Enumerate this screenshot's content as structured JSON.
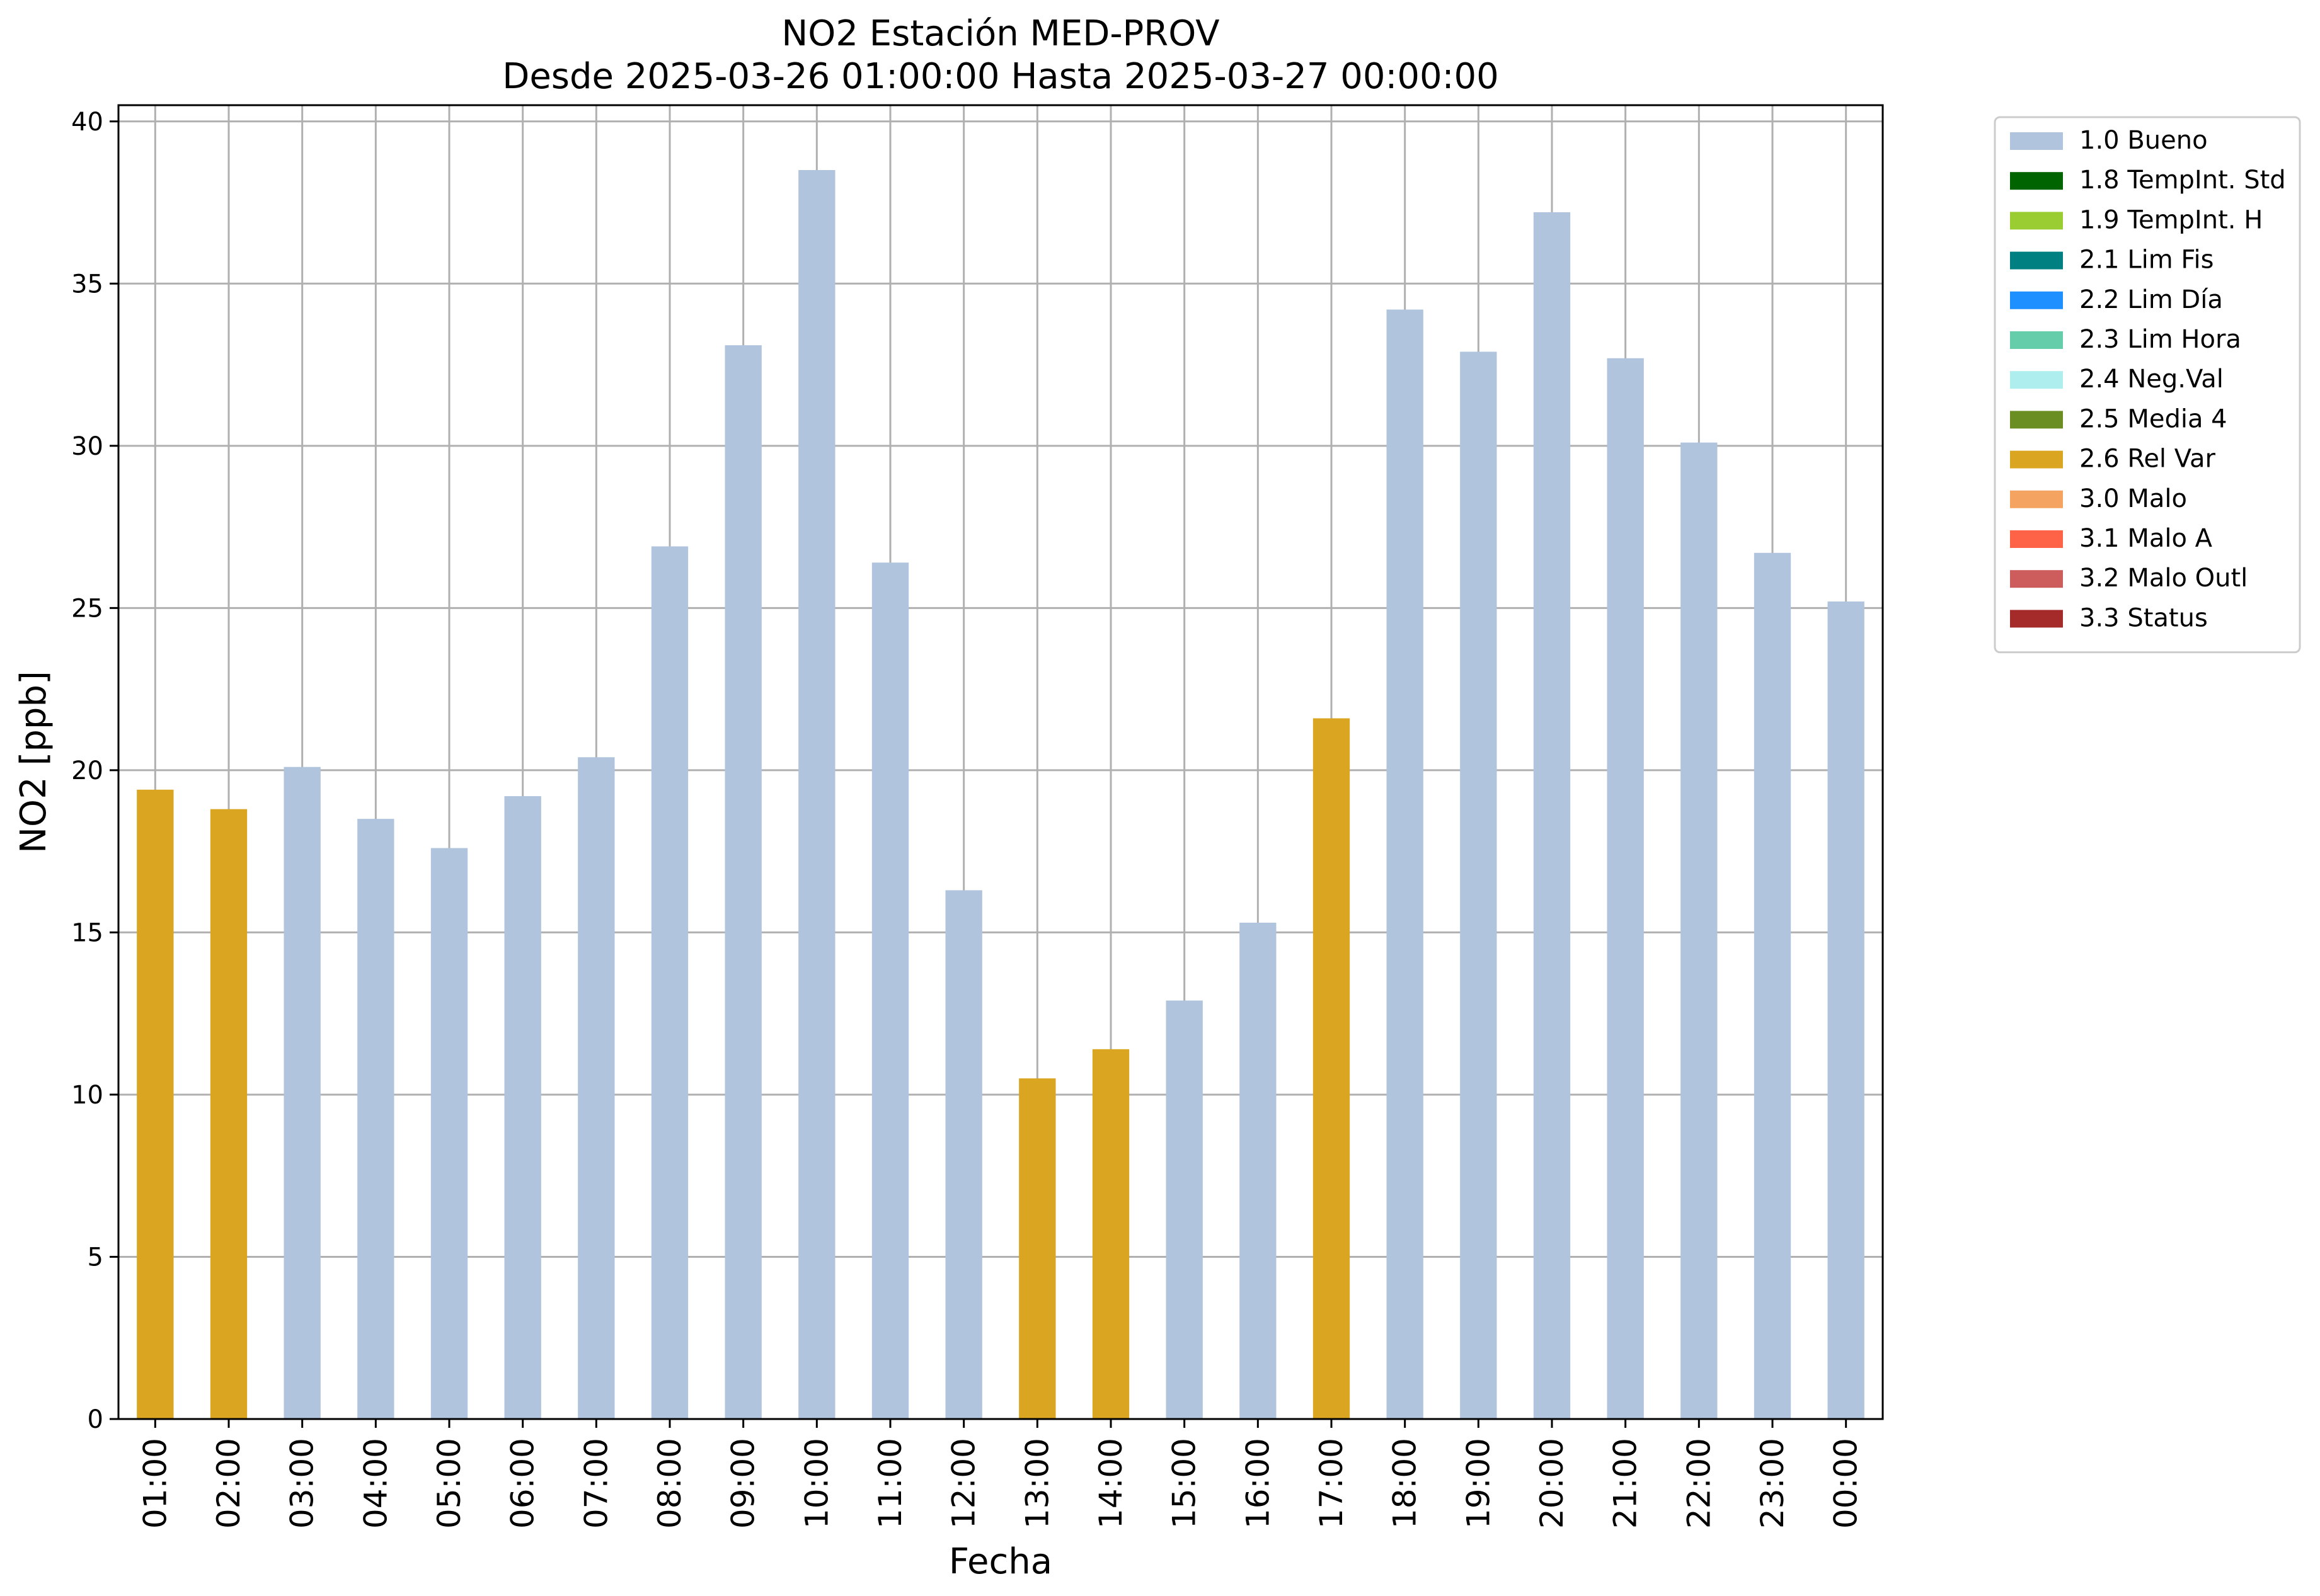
{
  "chart_data": {
    "type": "bar",
    "title": [
      "NO2 Estación MED-PROV",
      "Desde 2025-03-26 01:00:00 Hasta 2025-03-27 00:00:00"
    ],
    "xlabel": "Fecha",
    "ylabel": "NO2 [ppb]",
    "ylim": [
      0,
      40.5
    ],
    "yticks": [
      0,
      5,
      10,
      15,
      20,
      25,
      30,
      35,
      40
    ],
    "grid": true,
    "legend_position": "outside-top-right",
    "categories": [
      "01:00",
      "02:00",
      "03:00",
      "04:00",
      "05:00",
      "06:00",
      "07:00",
      "08:00",
      "09:00",
      "10:00",
      "11:00",
      "12:00",
      "13:00",
      "14:00",
      "15:00",
      "16:00",
      "17:00",
      "18:00",
      "19:00",
      "20:00",
      "21:00",
      "22:00",
      "23:00",
      "00:00"
    ],
    "values": [
      19.4,
      18.8,
      20.1,
      18.5,
      17.6,
      19.2,
      20.4,
      26.9,
      33.1,
      38.5,
      26.4,
      16.3,
      10.5,
      11.4,
      12.9,
      15.3,
      21.6,
      34.2,
      32.9,
      37.2,
      32.7,
      30.1,
      26.7,
      25.2
    ],
    "flags": [
      "2.6",
      "2.6",
      "1.0",
      "1.0",
      "1.0",
      "1.0",
      "1.0",
      "1.0",
      "1.0",
      "1.0",
      "1.0",
      "1.0",
      "2.6",
      "2.6",
      "1.0",
      "1.0",
      "2.6",
      "1.0",
      "1.0",
      "1.0",
      "1.0",
      "1.0",
      "1.0",
      "1.0"
    ],
    "legend": [
      {
        "code": "1.0",
        "label": "1.0 Bueno",
        "color": "#b0c4de"
      },
      {
        "code": "1.8",
        "label": "1.8 TempInt. Std",
        "color": "#006400"
      },
      {
        "code": "1.9",
        "label": "1.9 TempInt. H",
        "color": "#9acd32"
      },
      {
        "code": "2.1",
        "label": "2.1 Lim Fis",
        "color": "#008080"
      },
      {
        "code": "2.2",
        "label": "2.2 Lim Día",
        "color": "#1e90ff"
      },
      {
        "code": "2.3",
        "label": "2.3 Lim Hora",
        "color": "#66cdaa"
      },
      {
        "code": "2.4",
        "label": "2.4 Neg.Val",
        "color": "#afeeee"
      },
      {
        "code": "2.5",
        "label": "2.5 Media 4",
        "color": "#6b8e23"
      },
      {
        "code": "2.6",
        "label": "2.6 Rel Var",
        "color": "#daa520"
      },
      {
        "code": "3.0",
        "label": "3.0 Malo",
        "color": "#f4a460"
      },
      {
        "code": "3.1",
        "label": "3.1 Malo A",
        "color": "#ff6347"
      },
      {
        "code": "3.2",
        "label": "3.2 Malo Outl",
        "color": "#cd5c5c"
      },
      {
        "code": "3.3",
        "label": "3.3 Status",
        "color": "#a52a2a"
      }
    ]
  }
}
